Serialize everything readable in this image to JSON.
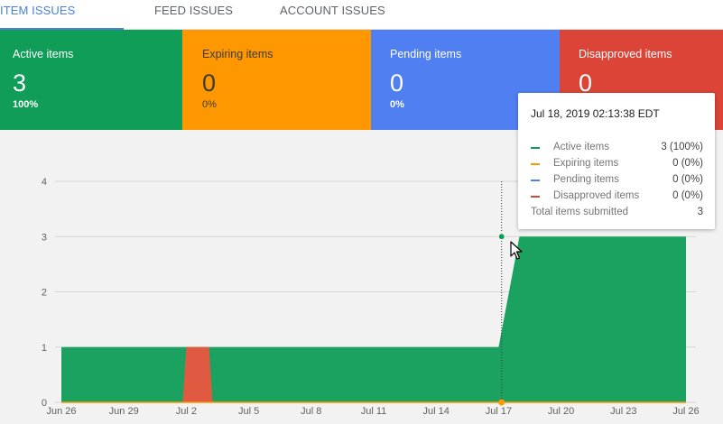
{
  "tabs": [
    {
      "label": "ITEM ISSUES",
      "active": true
    },
    {
      "label": "FEED ISSUES",
      "active": false
    },
    {
      "label": "ACCOUNT ISSUES",
      "active": false
    }
  ],
  "cards": [
    {
      "label": "Active items",
      "value": "3",
      "pct": "100%",
      "color": "#0f9d58"
    },
    {
      "label": "Expiring items",
      "value": "0",
      "pct": "0%",
      "color": "#ff9800"
    },
    {
      "label": "Pending items",
      "value": "0",
      "pct": "0%",
      "color": "#4f7ff0"
    },
    {
      "label": "Disapproved items",
      "value": "0",
      "pct": "",
      "color": "#db4437"
    }
  ],
  "tooltip": {
    "title": "Jul 18, 2019 02:13:38 EDT",
    "rows": [
      {
        "name": "Active items",
        "value": "3 (100%)",
        "color": "#0f9d58"
      },
      {
        "name": "Expiring items",
        "value": "0 (0%)",
        "color": "#ff9800"
      },
      {
        "name": "Pending items",
        "value": "0 (0%)",
        "color": "#4f7ff0"
      },
      {
        "name": "Disapproved items",
        "value": "0 (0%)",
        "color": "#db4437"
      }
    ],
    "total_label": "Total items submitted",
    "total_value": "3"
  },
  "chart_data": {
    "type": "area",
    "x": [
      "2019-06-26",
      "2019-07-02",
      "2019-07-03",
      "2019-07-04",
      "2019-07-17",
      "2019-07-18",
      "2019-07-26"
    ],
    "x_ticks": [
      "Jun 26",
      "Jun 29",
      "Jul 2",
      "Jul 5",
      "Jul 8",
      "Jul 11",
      "Jul 14",
      "Jul 17",
      "Jul 20",
      "Jul 23",
      "Jul 26"
    ],
    "y_ticks": [
      "0",
      "1",
      "2",
      "3",
      "4"
    ],
    "ylim": [
      0,
      4
    ],
    "series": [
      {
        "name": "Active items",
        "color": "#1ba261",
        "values": [
          1,
          1,
          1,
          1,
          1,
          3,
          3
        ]
      },
      {
        "name": "Disapproved items",
        "color": "#e05a41",
        "values": [
          0,
          1,
          1,
          0,
          0,
          0,
          0
        ]
      },
      {
        "name": "Expiring items",
        "color": "#ff9800",
        "values": [
          0,
          0,
          0,
          0,
          0,
          0,
          0
        ]
      }
    ],
    "grid": true,
    "hover_date": "2019-07-18"
  }
}
